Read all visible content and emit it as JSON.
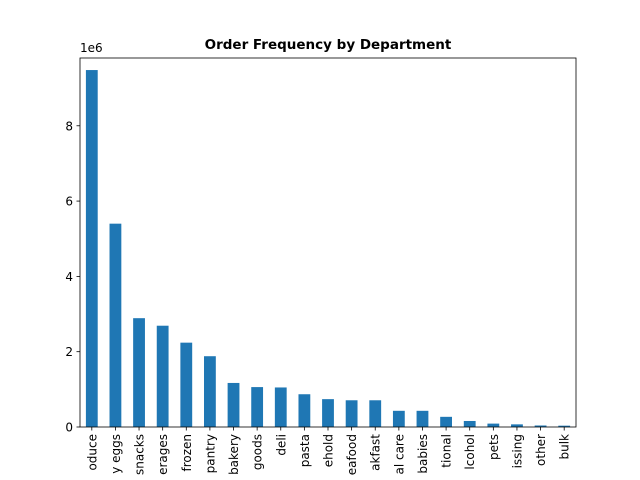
{
  "chart_data": {
    "type": "bar",
    "title": "Order Frequency by Department",
    "xlabel": "",
    "ylabel": "",
    "offset_label": "1e6",
    "ylim": [
      0,
      9.8
    ],
    "yticks": [
      0,
      2,
      4,
      6,
      8
    ],
    "ytick_labels": [
      "0",
      "2",
      "4",
      "6",
      "8"
    ],
    "grid": false,
    "legend": "none",
    "bar_color": "#1f77b4",
    "categories": [
      "oduce",
      "y eggs",
      "snacks",
      "erages",
      "frozen",
      "pantry",
      "bakery",
      "goods",
      "deli",
      "pasta",
      "ehold",
      "eafood",
      "akfast",
      "al care",
      "babies",
      "tional",
      "lcohol",
      "pets",
      "issing",
      "other",
      "bulk"
    ],
    "values": [
      9.48,
      5.4,
      2.89,
      2.69,
      2.24,
      1.88,
      1.17,
      1.06,
      1.05,
      0.87,
      0.74,
      0.71,
      0.71,
      0.43,
      0.43,
      0.27,
      0.16,
      0.09,
      0.07,
      0.04,
      0.035
    ]
  }
}
